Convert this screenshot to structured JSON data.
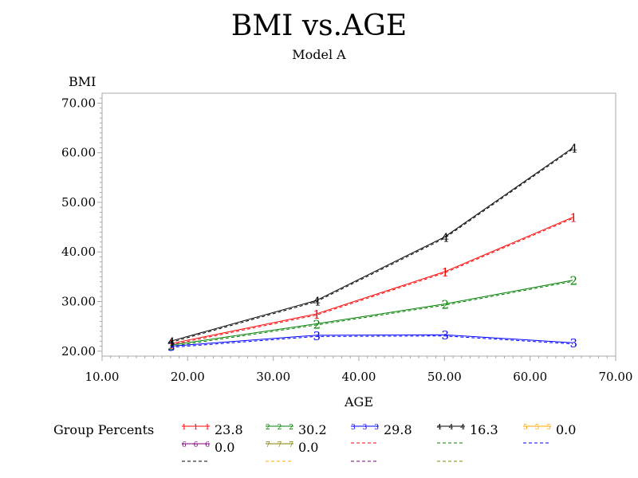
{
  "chart_data": {
    "type": "line",
    "title": "BMI  vs.AGE",
    "subtitle": "Model  A",
    "xlabel": "AGE",
    "ylabel": "BMI",
    "xlim": [
      10,
      70
    ],
    "ylim": [
      19,
      72
    ],
    "xticks": [
      "10.00",
      "20.00",
      "30.00",
      "40.00",
      "50.00",
      "60.00",
      "70.00"
    ],
    "yticks": [
      "20.00",
      "30.00",
      "40.00",
      "50.00",
      "60.00",
      "70.00"
    ],
    "x": [
      18,
      35,
      50,
      65
    ],
    "series": [
      {
        "name": "1",
        "color": "#ff0000",
        "values": [
          21.5,
          27.5,
          36.0,
          47.0
        ]
      },
      {
        "name": "2",
        "color": "#008000",
        "values": [
          21.2,
          25.5,
          29.5,
          34.3
        ]
      },
      {
        "name": "3",
        "color": "#0000ff",
        "values": [
          21.0,
          23.2,
          23.3,
          21.7
        ]
      },
      {
        "name": "4",
        "color": "#000000",
        "values": [
          22.0,
          30.2,
          43.0,
          61.0
        ]
      }
    ],
    "legend": {
      "heading": "Group  Percents",
      "entries": [
        {
          "marker": "1 1 1",
          "color": "#ff0000",
          "value": "23.8"
        },
        {
          "marker": "2 2 2",
          "color": "#008000",
          "value": "30.2"
        },
        {
          "marker": "3 3 3",
          "color": "#0000ff",
          "value": "29.8"
        },
        {
          "marker": "4 4 4",
          "color": "#000000",
          "value": "16.3"
        },
        {
          "marker": "5 5 5",
          "color": "#ffa500",
          "value": "0.0"
        },
        {
          "marker": "6 6 6",
          "color": "#800080",
          "value": "0.0"
        },
        {
          "marker": "7 7 7",
          "color": "#808000",
          "value": "0.0"
        }
      ],
      "dash_colors": [
        "#ff0000",
        "#008000",
        "#0000ff",
        "#000000",
        "#ffa500",
        "#800080",
        "#808000",
        "#000000",
        "#ffa500",
        "#0000ff"
      ]
    }
  }
}
